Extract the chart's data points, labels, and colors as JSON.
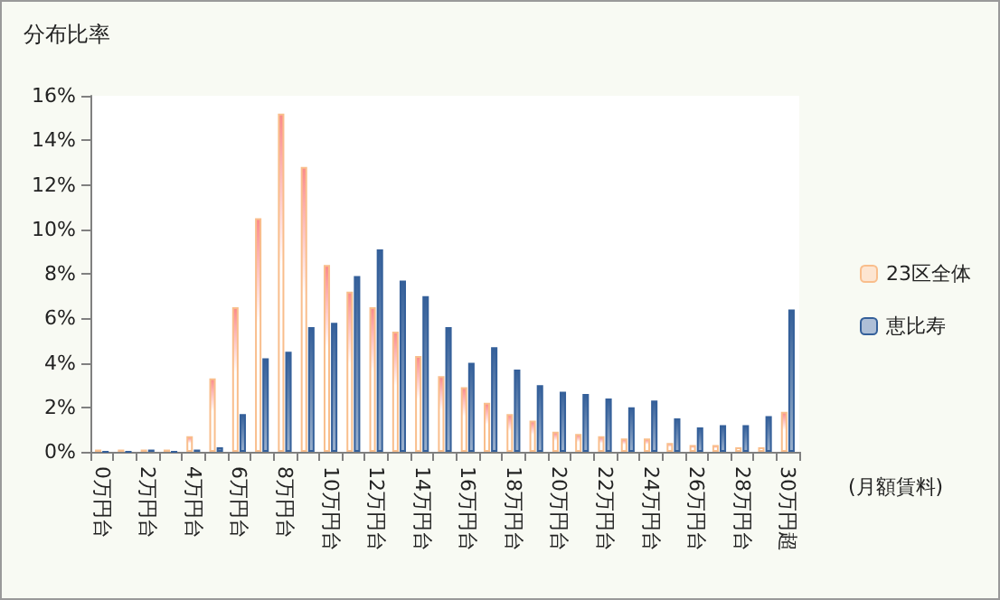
{
  "chart_data": {
    "type": "bar",
    "ylabel": "分布比率",
    "xlabel": "(月額賃料)",
    "categories": [
      "0万円台",
      null,
      "2万円台",
      null,
      "4万円台",
      null,
      "6万円台",
      null,
      "8万円台",
      null,
      "10万円台",
      null,
      "12万円台",
      null,
      "14万円台",
      null,
      "16万円台",
      null,
      "18万円台",
      null,
      "20万円台",
      null,
      "22万円台",
      null,
      "24万円台",
      null,
      "26万円台",
      null,
      "28万円台",
      null,
      "30万円超"
    ],
    "series": [
      {
        "name": "23区全体",
        "color": "#f9be8c",
        "values": [
          0.1,
          0.1,
          0.1,
          0.1,
          0.7,
          3.3,
          6.5,
          10.5,
          15.2,
          12.8,
          8.4,
          7.2,
          6.5,
          5.4,
          4.3,
          3.4,
          2.9,
          2.2,
          1.7,
          1.4,
          0.9,
          0.8,
          0.7,
          0.6,
          0.6,
          0.4,
          0.3,
          0.3,
          0.2,
          0.2,
          1.8
        ]
      },
      {
        "name": "恵比寿",
        "color": "#35609a",
        "values": [
          0,
          0,
          0.1,
          0,
          0.1,
          0.2,
          1.7,
          4.2,
          4.5,
          5.6,
          5.8,
          7.9,
          9.1,
          7.7,
          7.0,
          5.6,
          4.0,
          4.7,
          3.7,
          3.0,
          2.7,
          2.6,
          2.4,
          2.0,
          2.3,
          1.5,
          1.1,
          1.2,
          1.2,
          1.6,
          6.4
        ]
      }
    ],
    "ylim": [
      0,
      16
    ],
    "yticks": [
      {
        "value": 0,
        "label": "0%"
      },
      {
        "value": 2,
        "label": "2%"
      },
      {
        "value": 4,
        "label": "4%"
      },
      {
        "value": 6,
        "label": "6%"
      },
      {
        "value": 8,
        "label": "8%"
      },
      {
        "value": 10,
        "label": "10%"
      },
      {
        "value": 12,
        "label": "12%"
      },
      {
        "value": 14,
        "label": "14%"
      },
      {
        "value": 16,
        "label": "16%"
      }
    ],
    "grid": false,
    "legend": "right"
  }
}
